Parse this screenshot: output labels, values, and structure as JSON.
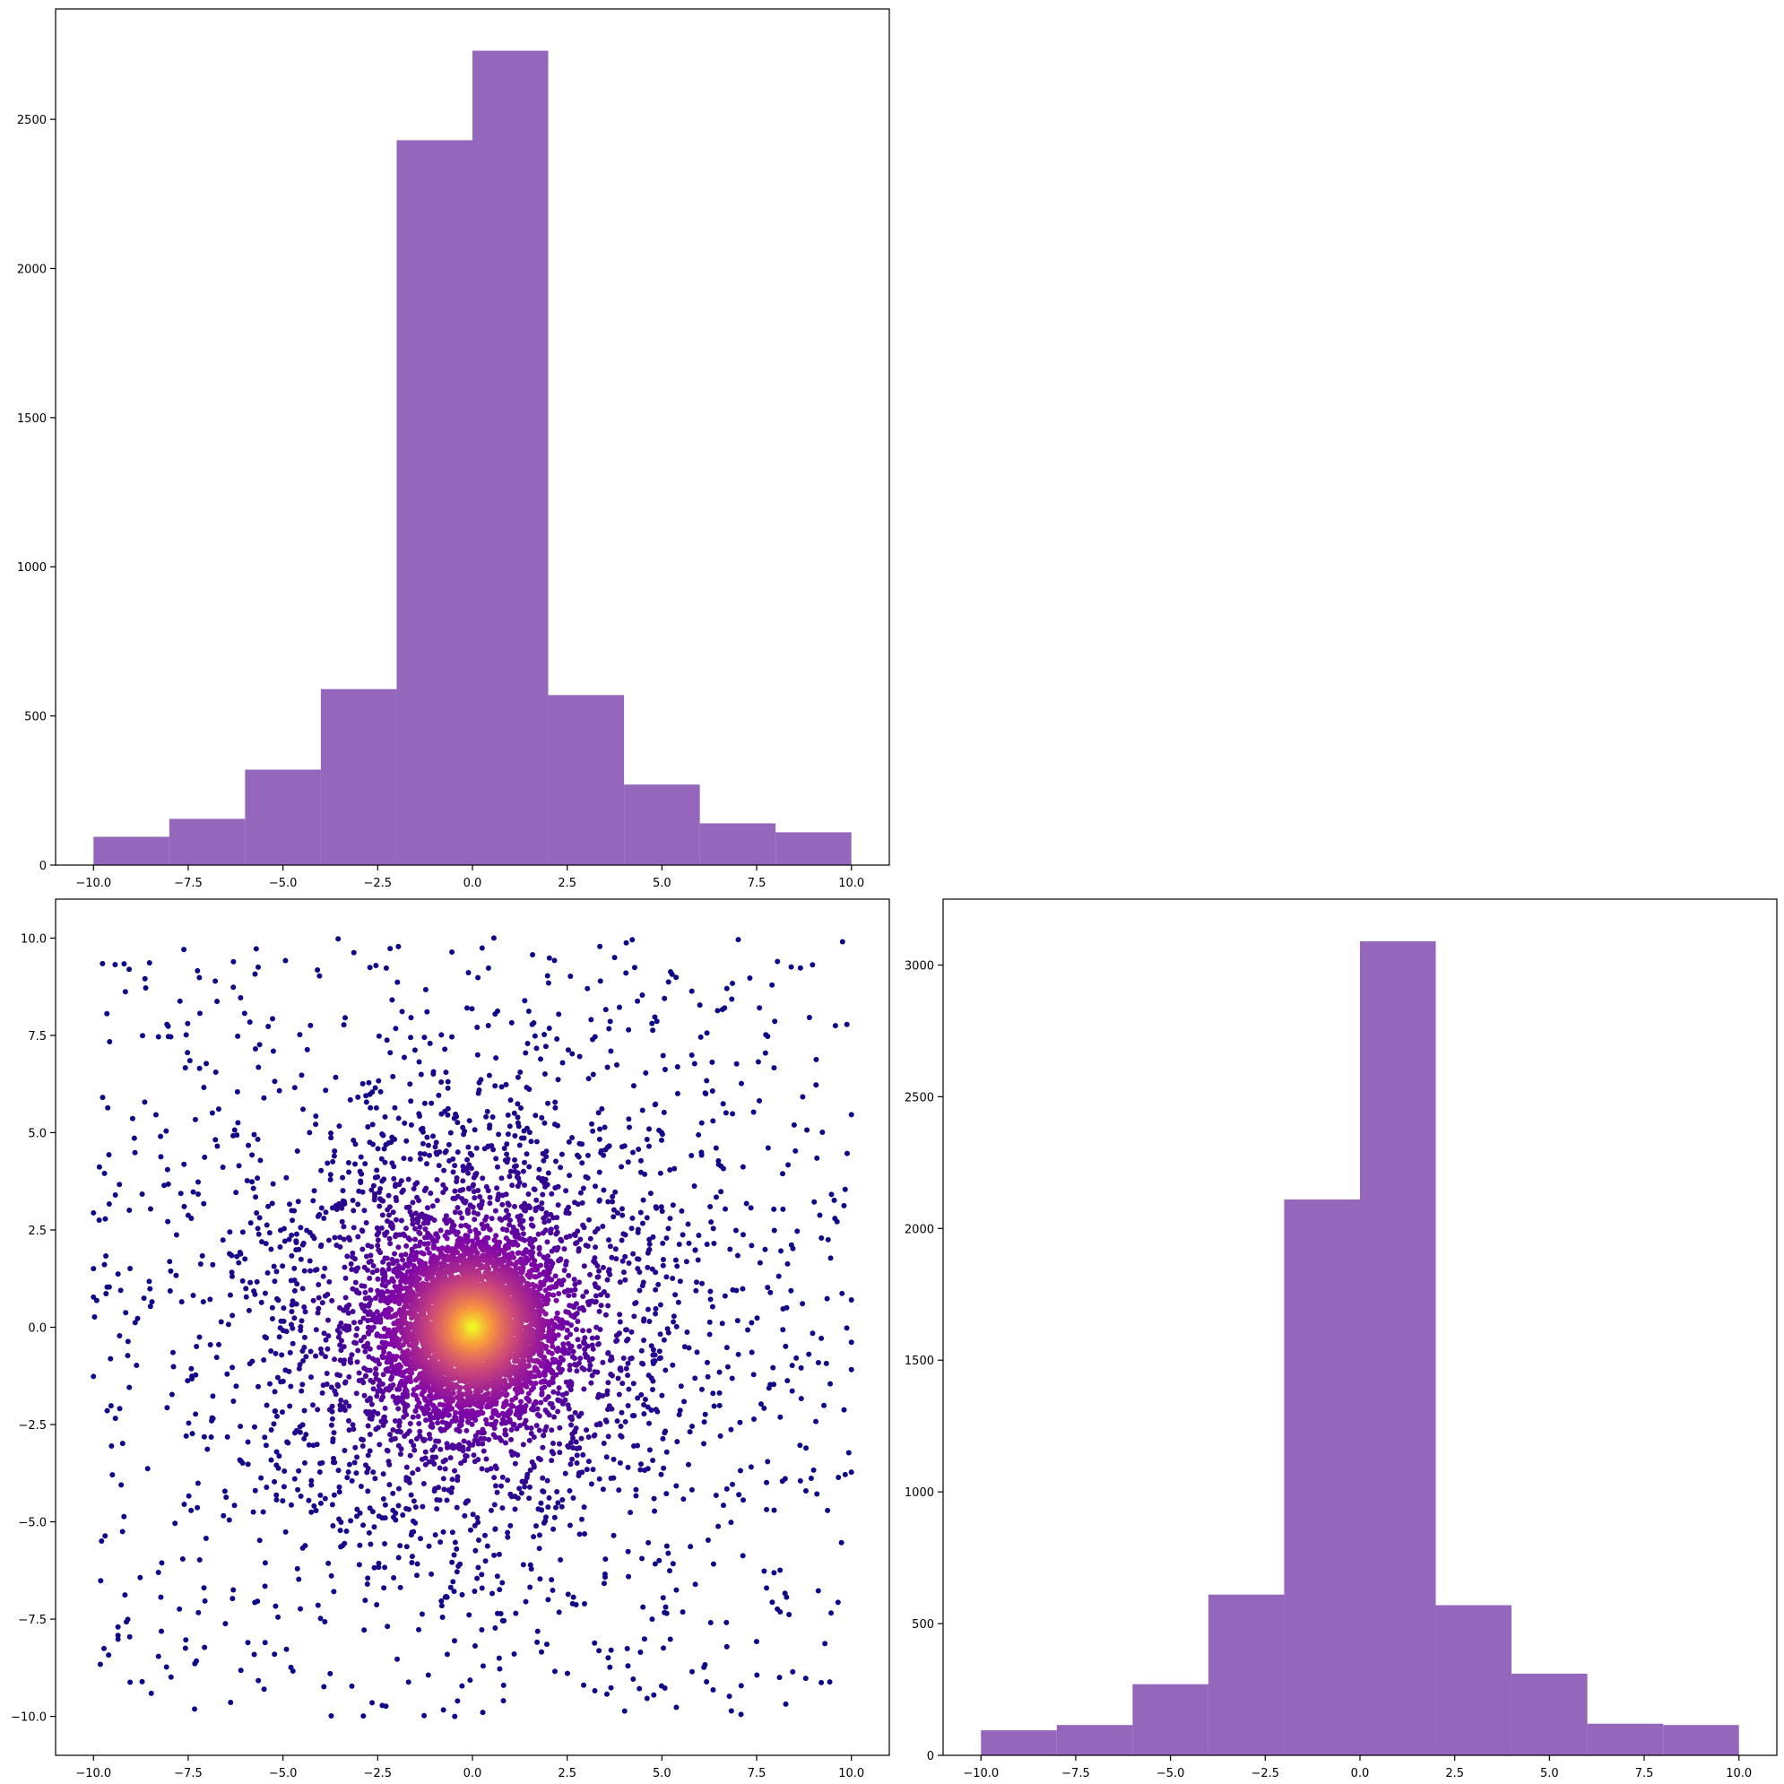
{
  "figure": {
    "colors": {
      "histogram_fill": "#9467bd",
      "axes_frame": "#000000",
      "scatter_colormap": "plasma"
    }
  },
  "chart_data": [
    {
      "panel": "top-left",
      "type": "bar",
      "description": "histogram of x",
      "bin_edges": [
        -10,
        -8,
        -6,
        -4,
        -2,
        0,
        2,
        4,
        6,
        8,
        10
      ],
      "values": [
        95,
        155,
        320,
        590,
        2430,
        2730,
        570,
        270,
        140,
        110
      ],
      "xlim": [
        -11,
        11
      ],
      "ylim": [
        0,
        2870
      ],
      "xticks": [
        "−10.0",
        "−7.5",
        "−5.0",
        "−2.5",
        "0.0",
        "2.5",
        "5.0",
        "7.5",
        "10.0"
      ],
      "yticks": [
        "0",
        "500",
        "1000",
        "1500",
        "2000",
        "2500"
      ],
      "title": "",
      "xlabel": "",
      "ylabel": ""
    },
    {
      "panel": "bottom-left",
      "type": "scatter",
      "description": "x vs y points coloured by density (plasma colormap, yellow at centre, indigo at edges)",
      "xlim": [
        -11,
        11
      ],
      "ylim": [
        -11,
        11
      ],
      "xticks": [
        "−10.0",
        "−7.5",
        "−5.0",
        "−2.5",
        "0.0",
        "2.5",
        "5.0",
        "7.5",
        "10.0"
      ],
      "yticks": [
        "10.0",
        "7.5",
        "5.0",
        "2.5",
        "0.0",
        "−2.5",
        "−5.0",
        "−7.5",
        "−10.0"
      ],
      "center": [
        0,
        0
      ],
      "x_range": [
        -10,
        10
      ],
      "y_range": [
        -10,
        10
      ],
      "approx_points": 7000,
      "title": "",
      "xlabel": "",
      "ylabel": ""
    },
    {
      "panel": "bottom-right",
      "type": "bar",
      "description": "histogram of y",
      "bin_edges": [
        -10,
        -8,
        -6,
        -4,
        -2,
        0,
        2,
        4,
        6,
        8,
        10
      ],
      "values": [
        95,
        115,
        270,
        610,
        2110,
        3090,
        570,
        310,
        120,
        115
      ],
      "xlim": [
        -11,
        11
      ],
      "ylim": [
        0,
        3250
      ],
      "xticks": [
        "−10.0",
        "−7.5",
        "−5.0",
        "−2.5",
        "0.0",
        "2.5",
        "5.0",
        "7.5",
        "10.0"
      ],
      "yticks": [
        "0",
        "500",
        "1000",
        "1500",
        "2000",
        "2500",
        "3000"
      ],
      "title": "",
      "xlabel": "",
      "ylabel": ""
    }
  ]
}
